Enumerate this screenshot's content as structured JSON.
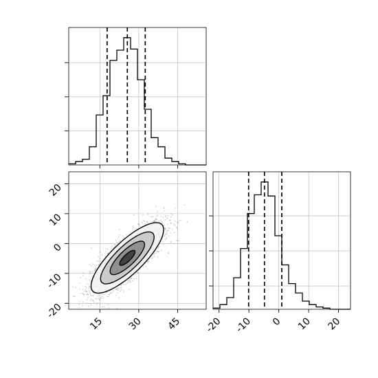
{
  "chart_data": {
    "type": "corner",
    "variables": [
      {
        "name": "",
        "range": [
          3,
          56
        ],
        "ticks": [
          15,
          30,
          45
        ],
        "tick_labels": [
          "15",
          "30",
          "45"
        ],
        "quantiles": [
          17.8,
          25.6,
          32.5
        ]
      },
      {
        "name": "",
        "range": [
          -22,
          24
        ],
        "ticks": [
          -20,
          -10,
          0,
          10,
          20
        ],
        "tick_labels": [
          "-20",
          "-10",
          "0",
          "10",
          "20"
        ],
        "quantiles": [
          -10.1,
          -4.8,
          1.0
        ]
      }
    ],
    "histogram_x": {
      "bins": [
        3,
        5.65,
        8.3,
        10.95,
        13.6,
        16.25,
        18.9,
        21.55,
        24.2,
        26.85,
        29.5,
        32.15,
        34.8,
        37.45,
        40.1,
        42.75,
        45.4,
        48.05,
        50.7,
        53.35,
        56
      ],
      "counts": [
        1,
        3,
        5,
        16,
        44,
        61,
        92,
        101,
        112,
        102,
        75,
        49,
        24,
        16,
        6,
        3,
        1,
        0,
        0,
        0
      ]
    },
    "histogram_y": {
      "bins": [
        -22,
        -19.7,
        -17.4,
        -15.1,
        -12.8,
        -10.5,
        -8.2,
        -5.9,
        -3.6,
        -1.3,
        1.0,
        3.3,
        5.6,
        7.9,
        10.2,
        12.5,
        14.8,
        17.1,
        19.4,
        21.7,
        24
      ],
      "counts": [
        1,
        4,
        10,
        27,
        52,
        82,
        98,
        109,
        97,
        63,
        38,
        22,
        14,
        7,
        4,
        2,
        1,
        0,
        0,
        0
      ]
    },
    "scatter": {
      "mean": [
        25.6,
        -4.8
      ],
      "std": [
        7.0,
        5.9
      ],
      "correlation": 0.8,
      "n_points": 2500
    },
    "contour_levels": [
      0.5,
      1.0,
      1.5,
      2.0
    ],
    "grid": true
  },
  "colors": {
    "line": "#000000",
    "point": "#9a9a9a",
    "grid": "#b0b0b0"
  }
}
